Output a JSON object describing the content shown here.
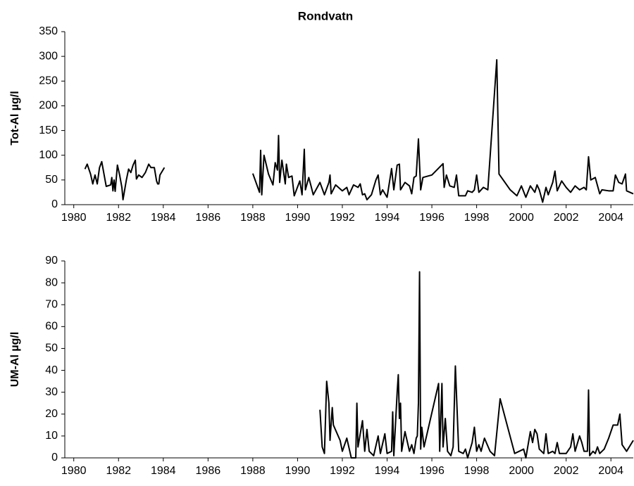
{
  "chart_data": [
    {
      "type": "line",
      "title": "Rondvatn",
      "ylabel": "Tot-Al µg/l",
      "color": "#000000",
      "xlim": [
        1979.6,
        2005
      ],
      "xticks": [
        1980,
        1982,
        1984,
        1986,
        1988,
        1990,
        1992,
        1994,
        1996,
        1998,
        2000,
        2002,
        2004
      ],
      "ylim": [
        0,
        350
      ],
      "yticks": [
        0,
        50,
        100,
        150,
        200,
        250,
        300,
        350
      ],
      "x": [
        1980.5,
        1980.6,
        1980.75,
        1980.85,
        1980.95,
        1981.05,
        1981.15,
        1981.25,
        1981.35,
        1981.45,
        1981.65,
        1981.7,
        1981.75,
        1981.8,
        1981.85,
        1981.95,
        1982.05,
        1982.15,
        1982.2,
        1982.35,
        1982.45,
        1982.55,
        1982.65,
        1982.75,
        1982.8,
        1982.9,
        1983.05,
        1983.2,
        1983.35,
        1983.45,
        1983.6,
        1983.7,
        1983.75,
        1983.8,
        1983.85,
        1984.05,
        1986,
        1988.0,
        1988.3,
        1988.35,
        1988.4,
        1988.5,
        1988.7,
        1988.9,
        1989.0,
        1989.1,
        1989.15,
        1989.2,
        1989.3,
        1989.45,
        1989.5,
        1989.6,
        1989.75,
        1989.85,
        1990.1,
        1990.2,
        1990.3,
        1990.35,
        1990.5,
        1990.6,
        1990.7,
        1991.0,
        1991.2,
        1991.4,
        1991.45,
        1991.5,
        1991.7,
        1992.0,
        1992.2,
        1992.3,
        1992.5,
        1992.7,
        1992.8,
        1992.9,
        1993.0,
        1993.1,
        1993.3,
        1993.5,
        1993.6,
        1993.7,
        1993.8,
        1994.0,
        1994.2,
        1994.3,
        1994.45,
        1994.55,
        1994.6,
        1994.8,
        1995.0,
        1995.1,
        1995.2,
        1995.3,
        1995.4,
        1995.5,
        1995.6,
        1996.0,
        1996.5,
        1996.55,
        1996.65,
        1996.8,
        1997.0,
        1997.1,
        1997.2,
        1997.5,
        1997.6,
        1997.8,
        1997.9,
        1998.0,
        1998.1,
        1998.3,
        1998.5,
        1998.9,
        1999.0,
        1999.5,
        1999.8,
        2000.0,
        2000.2,
        2000.4,
        2000.6,
        2000.7,
        2000.8,
        2000.95,
        2001.1,
        2001.2,
        2001.4,
        2001.5,
        2001.6,
        2001.8,
        2002.0,
        2002.2,
        2002.4,
        2002.6,
        2002.8,
        2002.9,
        2003.0,
        2003.1,
        2003.3,
        2003.5,
        2003.6,
        2003.9,
        2004.1,
        2004.2,
        2004.35,
        2004.5,
        2004.65,
        2004.7,
        2004.85,
        2005.0
      ],
      "values": [
        72,
        82,
        62,
        42,
        60,
        42,
        75,
        87,
        62,
        37,
        40,
        55,
        28,
        50,
        27,
        80,
        60,
        35,
        10,
        50,
        72,
        65,
        80,
        90,
        52,
        60,
        55,
        65,
        82,
        75,
        75,
        48,
        42,
        42,
        60,
        75,
        null,
        63,
        25,
        110,
        20,
        100,
        62,
        40,
        85,
        70,
        140,
        45,
        90,
        42,
        82,
        55,
        58,
        18,
        48,
        20,
        112,
        30,
        55,
        38,
        20,
        45,
        20,
        45,
        60,
        22,
        40,
        28,
        35,
        20,
        40,
        35,
        42,
        20,
        22,
        10,
        20,
        50,
        60,
        20,
        30,
        15,
        73,
        30,
        80,
        82,
        30,
        45,
        38,
        22,
        55,
        58,
        133,
        30,
        55,
        60,
        83,
        35,
        60,
        38,
        35,
        60,
        18,
        18,
        28,
        25,
        30,
        60,
        25,
        35,
        30,
        293,
        62,
        30,
        18,
        38,
        15,
        38,
        25,
        40,
        30,
        5,
        35,
        20,
        45,
        68,
        28,
        48,
        35,
        25,
        38,
        30,
        35,
        30,
        97,
        50,
        55,
        22,
        30,
        28,
        28,
        60,
        45,
        42,
        62,
        28,
        25,
        22
      ]
    },
    {
      "type": "line",
      "ylabel": "UM-Al µg/l",
      "color": "#000000",
      "xlim": [
        1979.6,
        2005
      ],
      "xticks": [
        1980,
        1982,
        1984,
        1986,
        1988,
        1990,
        1992,
        1994,
        1996,
        1998,
        2000,
        2002,
        2004
      ],
      "ylim": [
        0,
        90
      ],
      "yticks": [
        0,
        10,
        20,
        30,
        40,
        50,
        60,
        70,
        80,
        90
      ],
      "x": [
        1991.0,
        1991.1,
        1991.2,
        1991.3,
        1991.4,
        1991.45,
        1991.55,
        1991.6,
        1991.9,
        1992.0,
        1992.2,
        1992.4,
        1992.6,
        1992.65,
        1992.7,
        1992.9,
        1993.0,
        1993.1,
        1993.2,
        1993.4,
        1993.6,
        1993.7,
        1993.9,
        1994.0,
        1994.2,
        1994.25,
        1994.3,
        1994.45,
        1994.5,
        1994.55,
        1994.6,
        1994.65,
        1994.8,
        1995.0,
        1995.1,
        1995.2,
        1995.3,
        1995.35,
        1995.4,
        1995.45,
        1995.5,
        1995.55,
        1995.65,
        1996.3,
        1996.35,
        1996.45,
        1996.5,
        1996.6,
        1996.7,
        1996.85,
        1996.95,
        1997.05,
        1997.2,
        1997.4,
        1997.5,
        1997.6,
        1997.8,
        1997.9,
        1998.0,
        1998.1,
        1998.2,
        1998.35,
        1998.6,
        1998.8,
        1999.05,
        1999.7,
        1999.9,
        2000.1,
        2000.2,
        2000.4,
        2000.5,
        2000.6,
        2000.7,
        2000.8,
        2001.0,
        2001.1,
        2001.2,
        2001.4,
        2001.5,
        2001.6,
        2001.7,
        2002.0,
        2002.2,
        2002.3,
        2002.4,
        2002.6,
        2002.7,
        2002.8,
        2002.95,
        2003.0,
        2003.05,
        2003.2,
        2003.3,
        2003.4,
        2003.5,
        2003.7,
        2003.9,
        2004.1,
        2004.2,
        2004.3,
        2004.4,
        2004.5,
        2004.7,
        2005.0
      ],
      "values": [
        22,
        5,
        2,
        35,
        25,
        8,
        23,
        15,
        8,
        3,
        9,
        0,
        0,
        25,
        5,
        17,
        3,
        13,
        3,
        1,
        10,
        2,
        11,
        2,
        3,
        21,
        1,
        30,
        38,
        18,
        25,
        3,
        12,
        3,
        6,
        2,
        9,
        10,
        25,
        85,
        4,
        14,
        5,
        34,
        3,
        34,
        5,
        18,
        3,
        1,
        5,
        42,
        3,
        2,
        4,
        0,
        7,
        14,
        3,
        6,
        3,
        9,
        3,
        1,
        27,
        2,
        3,
        4,
        0,
        12,
        7,
        13,
        11,
        4,
        2,
        11,
        2,
        3,
        2,
        7,
        2,
        2,
        5,
        11,
        3,
        10,
        7,
        3,
        3,
        31,
        1,
        3,
        2,
        5,
        2,
        4,
        9,
        15,
        15,
        15,
        20,
        6,
        3,
        8
      ]
    }
  ]
}
